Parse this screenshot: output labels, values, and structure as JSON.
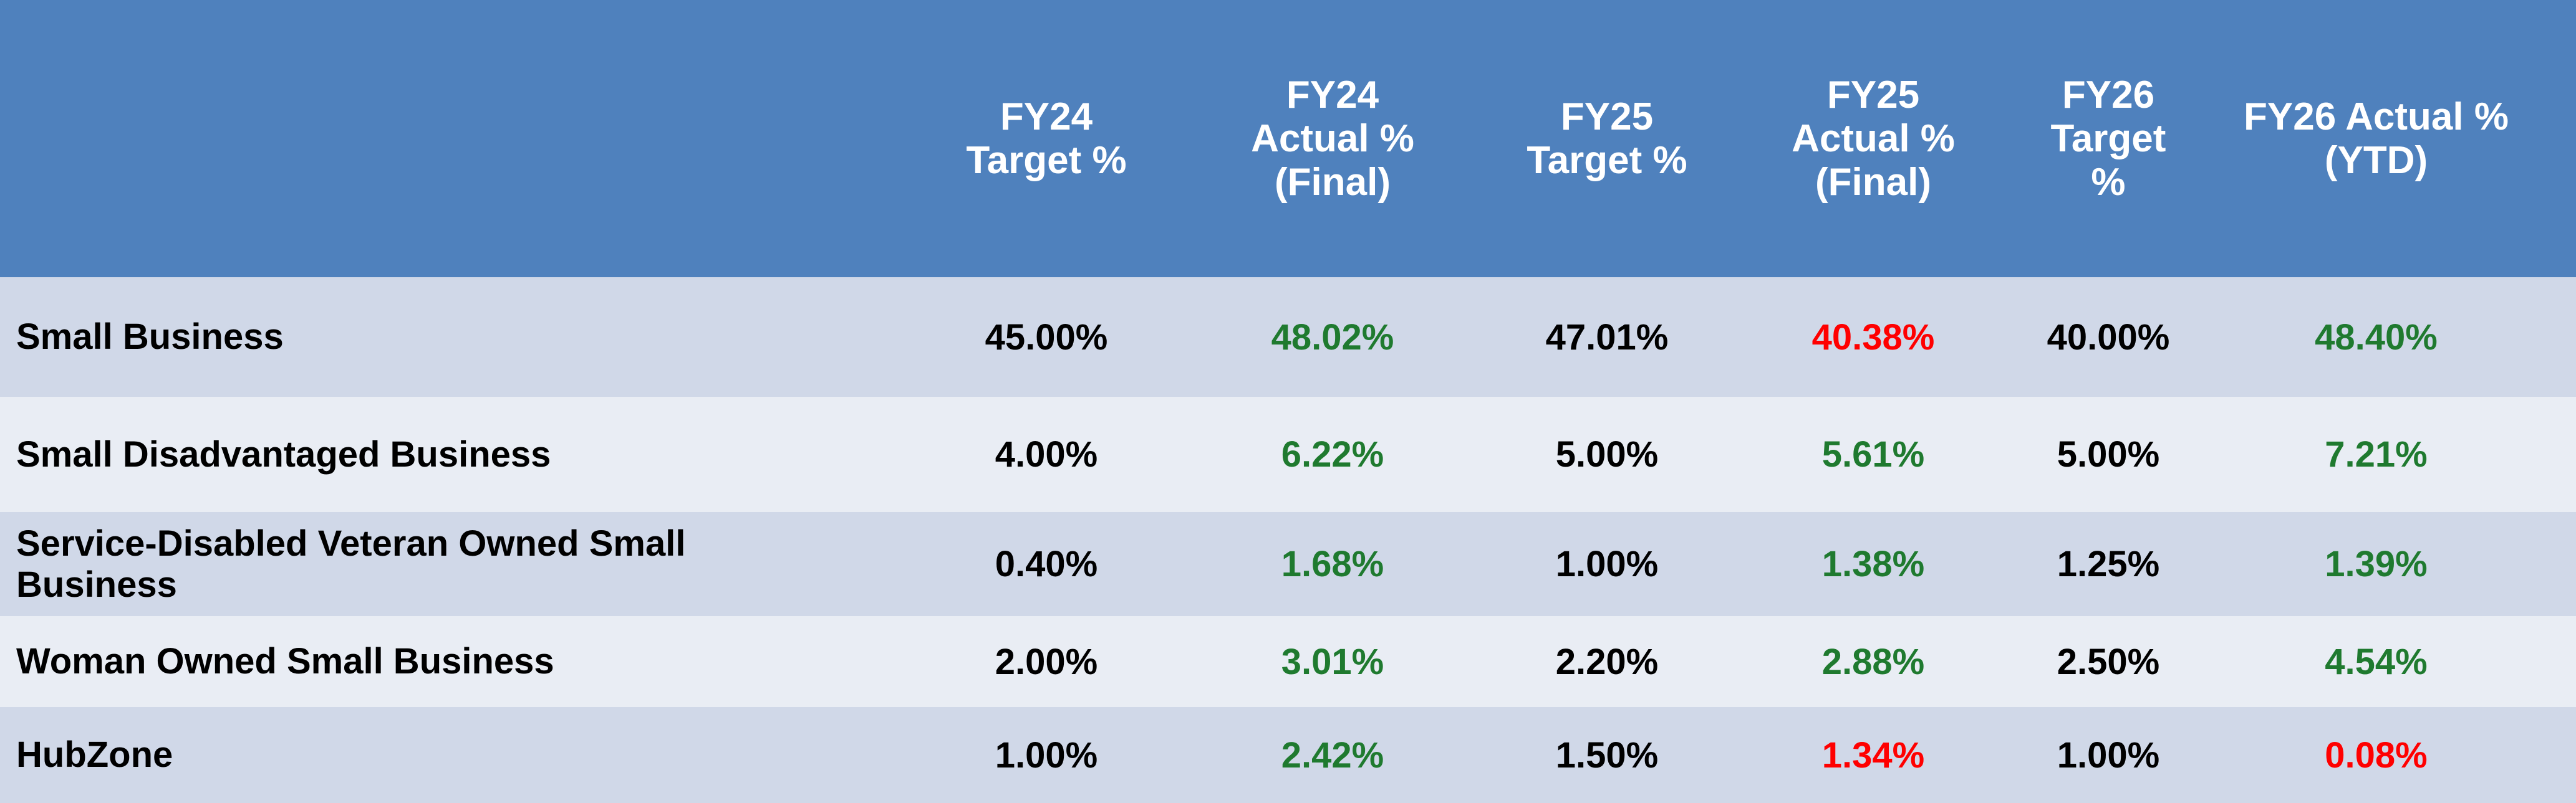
{
  "colors": {
    "header_bg": "#4f81bd",
    "row_odd": "#d0d8e8",
    "row_even": "#e9edf4",
    "above_target": "#1f7a2f",
    "below_target": "#ff0000"
  },
  "headers": [
    "",
    "FY24\nTarget %",
    "FY24\nActual %\n(Final)",
    "FY25\nTarget %",
    "FY25\nActual %\n(Final)",
    "FY26\nTarget %",
    "FY26 Actual %\n(YTD)"
  ],
  "rows": [
    {
      "label": "Small Business",
      "values": [
        "45.00%",
        "48.02%",
        "47.01%",
        "40.38%",
        "40.00%",
        "48.40%"
      ],
      "status": [
        "",
        "green",
        "",
        "red",
        "",
        "green"
      ]
    },
    {
      "label": "Small Disadvantaged Business",
      "values": [
        "4.00%",
        "6.22%",
        "5.00%",
        "5.61%",
        "5.00%",
        "7.21%"
      ],
      "status": [
        "",
        "green",
        "",
        "green",
        "",
        "green"
      ]
    },
    {
      "label": "Service-Disabled Veteran Owned Small Business",
      "values": [
        "0.40%",
        "1.68%",
        "1.00%",
        "1.38%",
        "1.25%",
        "1.39%"
      ],
      "status": [
        "",
        "green",
        "",
        "green",
        "",
        "green"
      ]
    },
    {
      "label": "Woman Owned Small Business",
      "values": [
        "2.00%",
        "3.01%",
        "2.20%",
        "2.88%",
        "2.50%",
        "4.54%"
      ],
      "status": [
        "",
        "green",
        "",
        "green",
        "",
        "green"
      ]
    },
    {
      "label": "HubZone",
      "values": [
        "1.00%",
        "2.42%",
        "1.50%",
        "1.34%",
        "1.00%",
        "0.08%"
      ],
      "status": [
        "",
        "green",
        "",
        "red",
        "",
        "red"
      ]
    }
  ]
}
